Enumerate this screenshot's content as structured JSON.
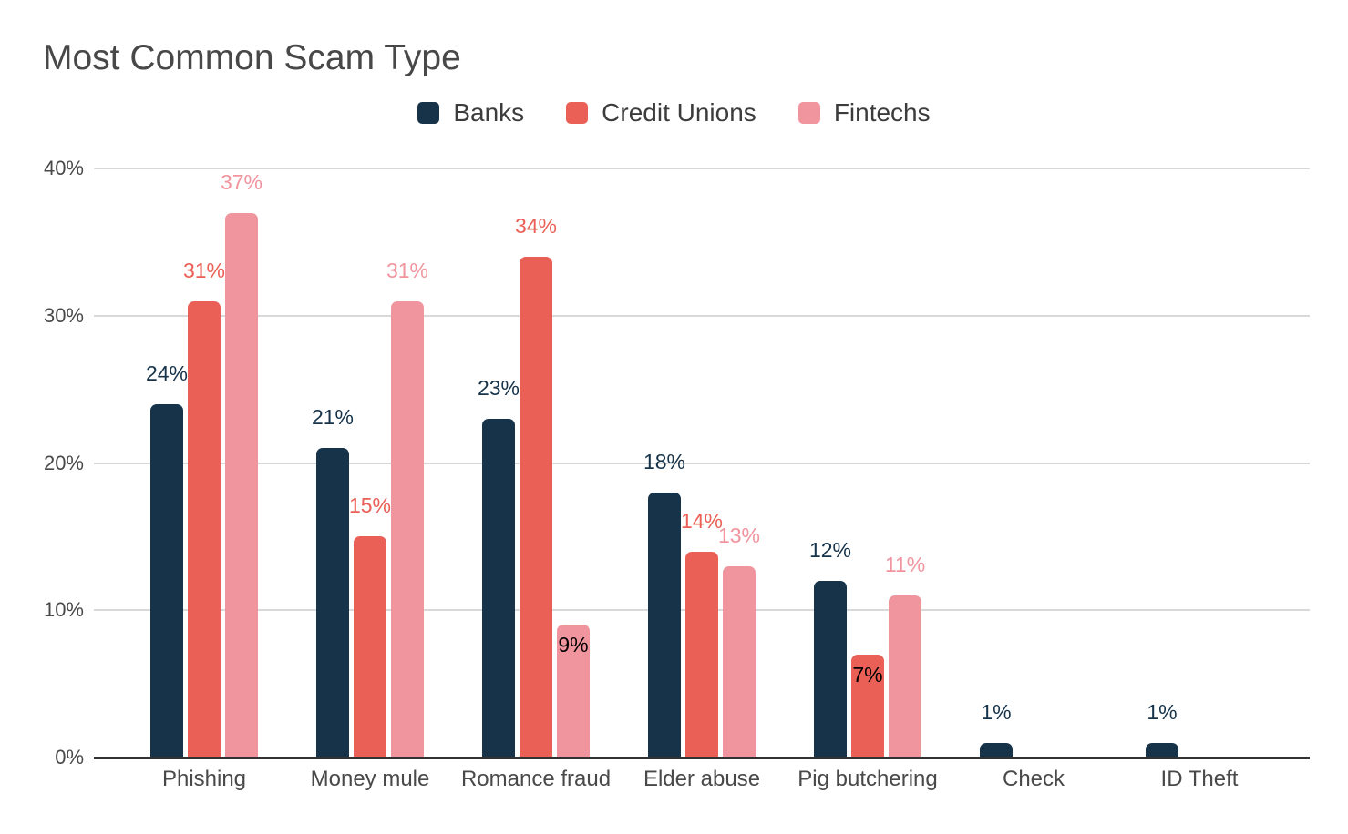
{
  "title": "Most Common Scam Type",
  "colors": {
    "banks": "#16334A",
    "credit_unions": "#EA6056",
    "fintechs": "#F0959E",
    "gridline": "#D9D9D9",
    "axis_baseline": "#333333",
    "axis_text": "#494949",
    "legend_text": "#3C3C3C",
    "title_text": "#484848",
    "inside_label_text": "#000000",
    "background": "#FFFFFF"
  },
  "chart_data": {
    "type": "bar",
    "title": "Most Common Scam Type",
    "xlabel": "",
    "ylabel": "",
    "grid": true,
    "legend_position": "top",
    "ylim": [
      0,
      40
    ],
    "y_axis": {
      "tick_values": [
        0,
        10,
        20,
        30,
        40
      ],
      "tick_labels": [
        "0%",
        "10%",
        "20%",
        "30%",
        "40%"
      ]
    },
    "categories": [
      "Phishing",
      "Money mule",
      "Romance fraud",
      "Elder abuse",
      "Pig butchering",
      "Check",
      "ID Theft"
    ],
    "series": [
      {
        "name": "Banks",
        "color": "#16334A",
        "values": [
          24,
          21,
          23,
          18,
          12,
          1,
          1
        ]
      },
      {
        "name": "Credit Unions",
        "color": "#EA6056",
        "values": [
          31,
          15,
          34,
          14,
          7,
          0,
          0
        ]
      },
      {
        "name": "Fintechs",
        "color": "#F0959E",
        "values": [
          37,
          31,
          9,
          13,
          11,
          0,
          0
        ]
      }
    ],
    "value_label_suffix": "%",
    "inside_labels": [
      {
        "category": "Romance fraud",
        "series": "Fintechs"
      },
      {
        "category": "Pig butchering",
        "series": "Credit Unions"
      }
    ]
  }
}
